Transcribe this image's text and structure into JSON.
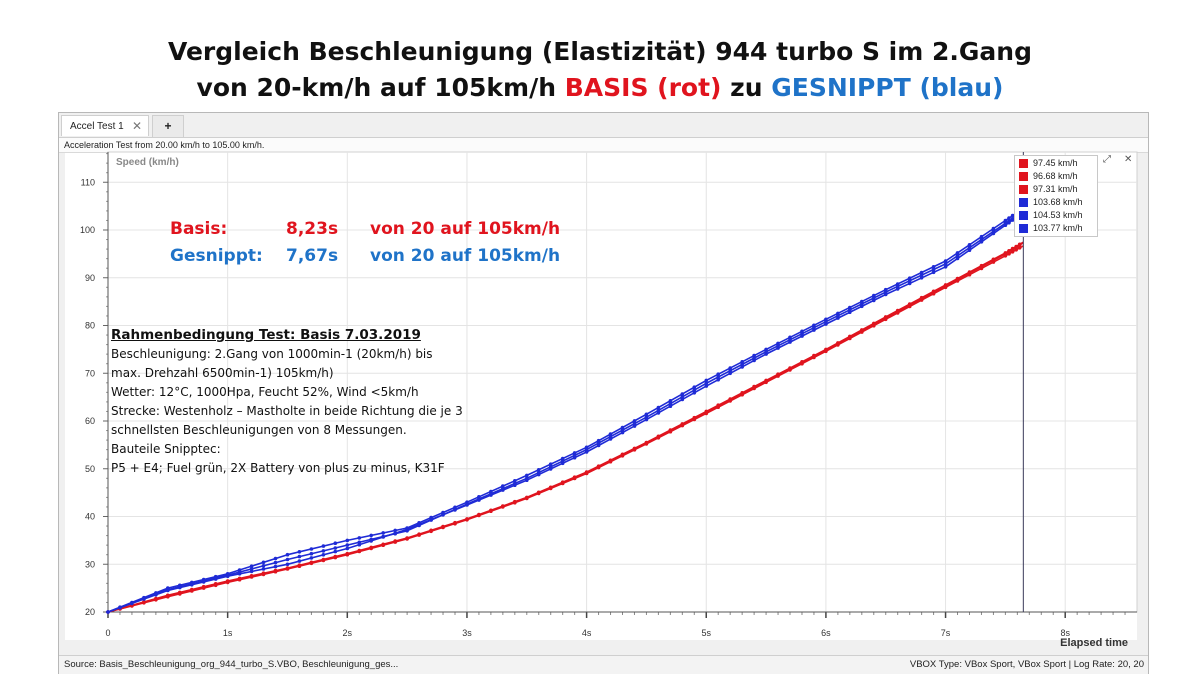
{
  "title_line1": "Vergleich Beschleunigung (Elastizität) 944 turbo S im 2.Gang",
  "title_line2": {
    "prefix": "von 20-km/h auf 105km/h ",
    "basis": "BASIS (rot)",
    "middle": " zu ",
    "gesnippt": "GESNIPPT (blau)"
  },
  "window": {
    "tab_label": "Accel Test 1",
    "tab_close": "✕",
    "new_tab": "+",
    "info": "Acceleration Test from 20.00 km/h to 105.00 km/h.",
    "status_left": "Source: Basis_Beschleunigung_org_944_turbo_S.VBO, Beschleunigung_ges...",
    "status_right": "VBOX Type: VBox Sport, VBox Sport | Log Rate: 20, 20",
    "legend_expand": "⤢",
    "legend_close": "✕"
  },
  "annotations": {
    "basis_label": "Basis:",
    "basis_time": "8,23s",
    "basis_range": "von 20 auf 105km/h",
    "gesnippt_label": "Gesnippt:",
    "gesnippt_time": "7,67s",
    "gesnippt_range": "von 20 auf 105km/h"
  },
  "conditions": {
    "heading": "Rahmenbedingung Test: Basis 7.03.2019",
    "lines": [
      "Beschleunigung: 2.Gang von 1000min-1 (20km/h) bis",
      "max. Drehzahl 6500min-1) 105km/h)",
      "Wetter: 12°C, 1000Hpa, Feucht 52%, Wind <5km/h",
      "Strecke: Westenholz – Mastholte in beide Richtung die je 3",
      "schnellsten Beschleunigungen von 8 Messungen.",
      "Bauteile Snipptec:",
      "P5 + E4; Fuel grün, 2X Battery von plus zu minus, K31F"
    ]
  },
  "colors": {
    "red": "#e0141e",
    "blue": "#1f2bd6",
    "title_red": "#e0141e",
    "title_blue": "#1f73c8"
  },
  "chart_data": {
    "type": "line",
    "ylabel": "Speed (km/h)",
    "xlabel": "Elapsed time",
    "xlim": [
      0,
      8.6
    ],
    "ylim": [
      20,
      112
    ],
    "x_ticks": [
      0,
      1,
      2,
      3,
      4,
      5,
      6,
      7,
      8
    ],
    "x_tick_labels": [
      "0",
      "1s",
      "2s",
      "3s",
      "4s",
      "5s",
      "6s",
      "7s",
      "8s"
    ],
    "y_ticks": [
      20,
      30,
      40,
      50,
      60,
      70,
      80,
      90,
      100,
      110
    ],
    "y_tick_labels": [
      "20",
      "30",
      "40",
      "50",
      "60",
      "70",
      "80",
      "90",
      "100",
      "110"
    ],
    "cursor_x": 7.65,
    "legend_position": "top-right",
    "series": [
      {
        "name": "97.45 km/h",
        "color": "#e0141e",
        "x": [
          0,
          0.5,
          1,
          1.5,
          2,
          2.5,
          3,
          3.5,
          4,
          4.5,
          5,
          5.5,
          6,
          6.5,
          7,
          7.5,
          7.65
        ],
        "y": [
          20,
          23.5,
          26.5,
          29.2,
          32.2,
          35.5,
          39.5,
          44,
          49.3,
          55.5,
          62,
          68.5,
          75,
          81.8,
          88.5,
          95.2,
          97.45
        ]
      },
      {
        "name": "96.68 km/h",
        "color": "#e0141e",
        "x": [
          0,
          0.5,
          1,
          1.5,
          2,
          2.5,
          3,
          3.5,
          4,
          4.5,
          5,
          5.5,
          6,
          6.5,
          7,
          7.5,
          7.65
        ],
        "y": [
          20,
          23.2,
          26.2,
          29,
          32,
          35.3,
          39.3,
          43.8,
          49,
          55.2,
          61.6,
          68.1,
          74.6,
          81.3,
          88,
          94.6,
          96.68
        ]
      },
      {
        "name": "97.31 km/h",
        "color": "#e0141e",
        "x": [
          0,
          0.5,
          1,
          1.5,
          2,
          2.5,
          3,
          3.5,
          4,
          4.5,
          5,
          5.5,
          6,
          6.5,
          7,
          7.5,
          7.65
        ],
        "y": [
          20,
          23.4,
          26.4,
          29.1,
          32.1,
          35.4,
          39.4,
          43.9,
          49.2,
          55.4,
          61.8,
          68.3,
          74.8,
          81.6,
          88.3,
          95,
          97.31
        ]
      },
      {
        "name": "103.68 km/h",
        "color": "#1f2bd6",
        "x": [
          0,
          0.5,
          1,
          1.5,
          2,
          2.5,
          3,
          3.5,
          4,
          4.5,
          5,
          5.5,
          6,
          6.5,
          7,
          7.5,
          7.65
        ],
        "y": [
          20,
          24.5,
          27.5,
          30,
          33.3,
          37.3,
          42.4,
          47.6,
          53.5,
          60.3,
          67.3,
          74,
          80.3,
          86.5,
          92.3,
          101,
          103.68
        ]
      },
      {
        "name": "104.53 km/h",
        "color": "#1f2bd6",
        "x": [
          0,
          0.5,
          1,
          1.5,
          2,
          2.5,
          3,
          3.5,
          4,
          4.5,
          5,
          5.5,
          6,
          6.5,
          7,
          7.5,
          7.65
        ],
        "y": [
          20,
          25,
          28,
          32,
          35,
          37.6,
          43,
          48.6,
          54.5,
          61.4,
          68.5,
          75,
          81.3,
          87.5,
          93.5,
          102,
          104.53
        ]
      },
      {
        "name": "103.77 km/h",
        "color": "#1f2bd6",
        "x": [
          0,
          0.5,
          1,
          1.5,
          2,
          2.5,
          3,
          3.5,
          4,
          4.5,
          5,
          5.5,
          6,
          6.5,
          7,
          7.5,
          7.65
        ],
        "y": [
          20,
          24.7,
          27.7,
          31,
          34,
          37,
          42.6,
          48,
          54,
          60.8,
          67.9,
          74.5,
          80.8,
          87,
          92.9,
          101.4,
          103.77
        ]
      }
    ]
  }
}
